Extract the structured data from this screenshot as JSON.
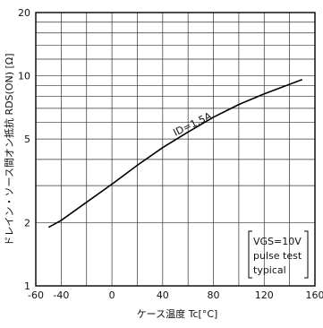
{
  "chart_data": {
    "type": "line",
    "xlabel": "ケース温度 Tc[°C]",
    "ylabel": "ドレイン・ソース間オン抵抗 RDS(ON) [Ω]",
    "xlim": [
      -60,
      160
    ],
    "ylim": [
      1,
      20
    ],
    "yscale": "log",
    "grid": true,
    "x_ticks": [
      -60,
      -40,
      0,
      40,
      80,
      120,
      160
    ],
    "x_tick_labels": [
      "-60",
      "-40",
      "0",
      "40",
      "80",
      "120",
      "160"
    ],
    "y_ticks": [
      1,
      2,
      5,
      10,
      20
    ],
    "y_tick_labels": [
      "1",
      "2",
      "5",
      "10",
      "20"
    ],
    "series": [
      {
        "name": "ID=1.5A",
        "x": [
          -50,
          -40,
          -20,
          0,
          20,
          40,
          60,
          80,
          100,
          120,
          150
        ],
        "y": [
          1.9,
          2.05,
          2.5,
          3.05,
          3.75,
          4.55,
          5.4,
          6.35,
          7.3,
          8.2,
          9.6
        ]
      }
    ],
    "annotations": {
      "curve_label": "ID=1.5A",
      "conditions": [
        "VGS=10V",
        "pulse test",
        "typical"
      ]
    }
  }
}
